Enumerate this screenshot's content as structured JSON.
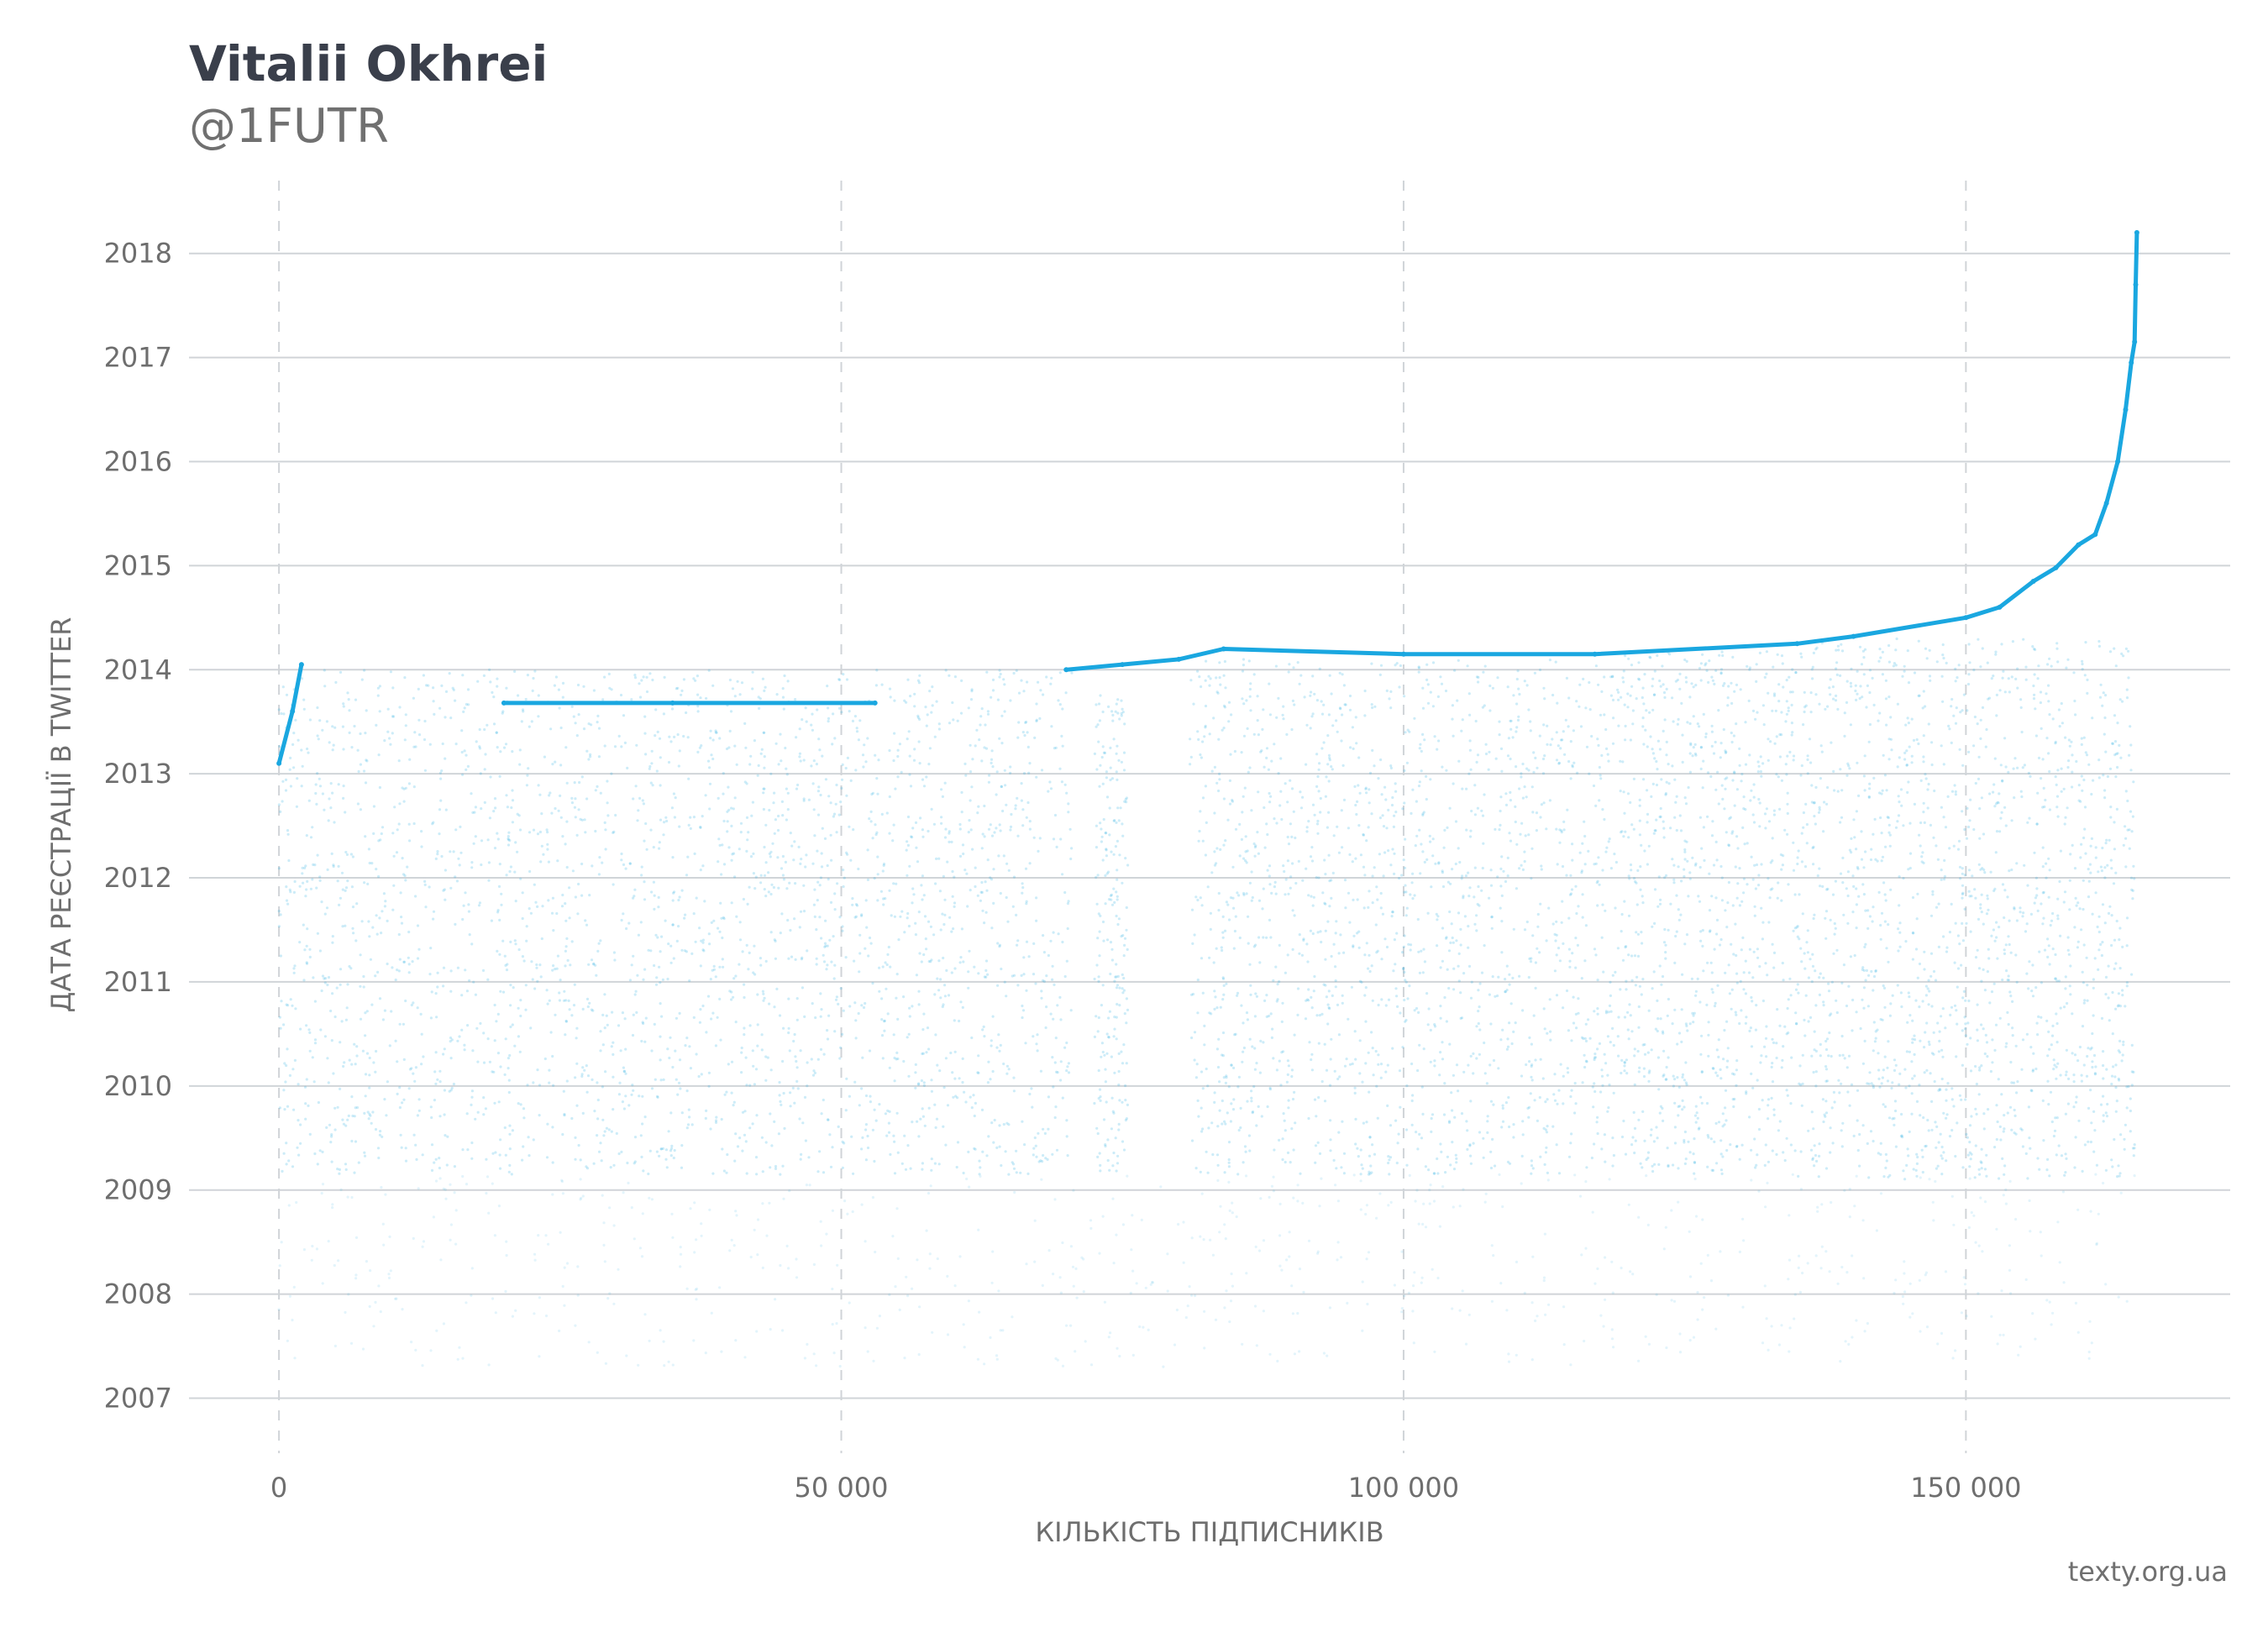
{
  "header": {
    "title": "Vitalii Okhrei",
    "subtitle": "@1FUTR"
  },
  "source": "texty.org.ua",
  "colors": {
    "points": "#1aa7e0",
    "grid": "#d0d4d8",
    "text": "#6e6e6e"
  },
  "chart_data": {
    "type": "scatter",
    "xlabel": "КІЛЬКІСТЬ ПІДПИСНИКІВ",
    "ylabel": "ДАТА РЕЄСТРАЦІЇ В TWITTER",
    "xlim": [
      -8000,
      173500
    ],
    "ylim": [
      2006.35,
      2018.7
    ],
    "xticks": [
      0,
      50000,
      100000,
      150000
    ],
    "xtick_labels": [
      "0",
      "50 000",
      "100 000",
      "150 000"
    ],
    "yticks": [
      2007,
      2008,
      2009,
      2010,
      2011,
      2012,
      2013,
      2014,
      2015,
      2016,
      2017,
      2018
    ],
    "ytick_labels": [
      "2007",
      "2008",
      "2009",
      "2010",
      "2011",
      "2012",
      "2013",
      "2014",
      "2015",
      "2016",
      "2017",
      "2018"
    ],
    "grid": {
      "horizontal": "solid",
      "vertical": "dashed"
    },
    "series": [
      {
        "points": [
          [
            0,
            2013.1
          ],
          [
            1200,
            2013.6
          ],
          [
            2000,
            2014.05
          ],
          [
            20000,
            2013.68
          ],
          [
            35000,
            2013.68
          ],
          [
            53000,
            2013.68
          ],
          [
            70000,
            2014.0
          ],
          [
            75000,
            2014.05
          ],
          [
            80000,
            2014.1
          ],
          [
            84000,
            2014.2
          ],
          [
            100000,
            2014.15
          ],
          [
            117000,
            2014.15
          ],
          [
            135000,
            2014.25
          ],
          [
            140000,
            2014.32
          ],
          [
            150000,
            2014.5
          ],
          [
            153000,
            2014.6
          ],
          [
            156000,
            2014.85
          ],
          [
            158000,
            2014.98
          ],
          [
            160000,
            2015.2
          ],
          [
            161500,
            2015.3
          ],
          [
            162500,
            2015.6
          ],
          [
            163500,
            2016.0
          ],
          [
            164200,
            2016.5
          ],
          [
            164700,
            2016.95
          ],
          [
            165000,
            2017.15
          ],
          [
            165100,
            2017.7
          ],
          [
            165200,
            2018.2
          ]
        ],
        "density_regions": [
          {
            "x": [
              0,
              70500
            ],
            "y": [
              2009.15,
              2014.0
            ]
          },
          {
            "x": [
              72500,
              75500
            ],
            "y": [
              2009.15,
              2013.8
            ]
          },
          {
            "x": [
              81000,
              117500
            ],
            "y": [
              2009.15,
              2014.1
            ]
          },
          {
            "x": [
              117500,
              135000
            ],
            "y": [
              2009.15,
              2014.2
            ]
          },
          {
            "x": [
              135000,
              165000
            ],
            "y": [
              2009.1,
              2014.3
            ]
          },
          {
            "x": [
              0,
              165000
            ],
            "y": [
              2007.3,
              2009.15
            ]
          }
        ]
      }
    ]
  }
}
